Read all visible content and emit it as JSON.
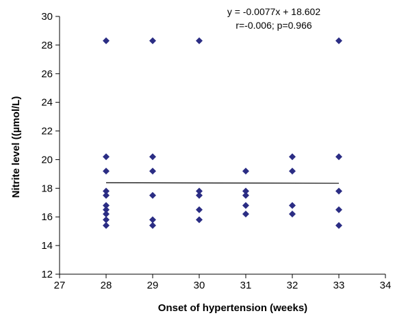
{
  "chart_data": {
    "type": "scatter",
    "title": "",
    "xlabel": "Onset of hypertension (weeks)",
    "ylabel": "Nitrite level ((µmol/L)",
    "xlim": [
      27,
      34
    ],
    "ylim": [
      12,
      30
    ],
    "x_ticks": [
      27,
      28,
      29,
      30,
      31,
      32,
      33,
      34
    ],
    "y_ticks": [
      12,
      14,
      16,
      18,
      20,
      22,
      24,
      26,
      28,
      30
    ],
    "grid": false,
    "legend": "none",
    "marker": "diamond",
    "marker_color": "#2b2d84",
    "line_color": "#000000",
    "annotations": [
      "y = -0.0077x + 18.602",
      "r=-0.006; p=0.966"
    ],
    "trendline": {
      "slope": -0.0077,
      "intercept": 18.602,
      "x_range": [
        28,
        33
      ]
    },
    "points": [
      {
        "x": 28,
        "y": 28.3
      },
      {
        "x": 28,
        "y": 20.2
      },
      {
        "x": 28,
        "y": 19.2
      },
      {
        "x": 28,
        "y": 17.8
      },
      {
        "x": 28,
        "y": 17.5
      },
      {
        "x": 28,
        "y": 16.8
      },
      {
        "x": 28,
        "y": 16.5
      },
      {
        "x": 28,
        "y": 16.2
      },
      {
        "x": 28,
        "y": 15.8
      },
      {
        "x": 28,
        "y": 15.4
      },
      {
        "x": 29,
        "y": 28.3
      },
      {
        "x": 29,
        "y": 20.2
      },
      {
        "x": 29,
        "y": 19.2
      },
      {
        "x": 29,
        "y": 17.5
      },
      {
        "x": 29,
        "y": 15.8
      },
      {
        "x": 29,
        "y": 15.4
      },
      {
        "x": 30,
        "y": 28.3
      },
      {
        "x": 30,
        "y": 17.8
      },
      {
        "x": 30,
        "y": 17.5
      },
      {
        "x": 30,
        "y": 16.5
      },
      {
        "x": 30,
        "y": 15.8
      },
      {
        "x": 31,
        "y": 19.2
      },
      {
        "x": 31,
        "y": 17.8
      },
      {
        "x": 31,
        "y": 17.5
      },
      {
        "x": 31,
        "y": 16.8
      },
      {
        "x": 31,
        "y": 16.2
      },
      {
        "x": 32,
        "y": 20.2
      },
      {
        "x": 32,
        "y": 19.2
      },
      {
        "x": 32,
        "y": 16.8
      },
      {
        "x": 32,
        "y": 16.2
      },
      {
        "x": 33,
        "y": 28.3
      },
      {
        "x": 33,
        "y": 20.2
      },
      {
        "x": 33,
        "y": 17.8
      },
      {
        "x": 33,
        "y": 16.5
      },
      {
        "x": 33,
        "y": 15.4
      }
    ]
  }
}
